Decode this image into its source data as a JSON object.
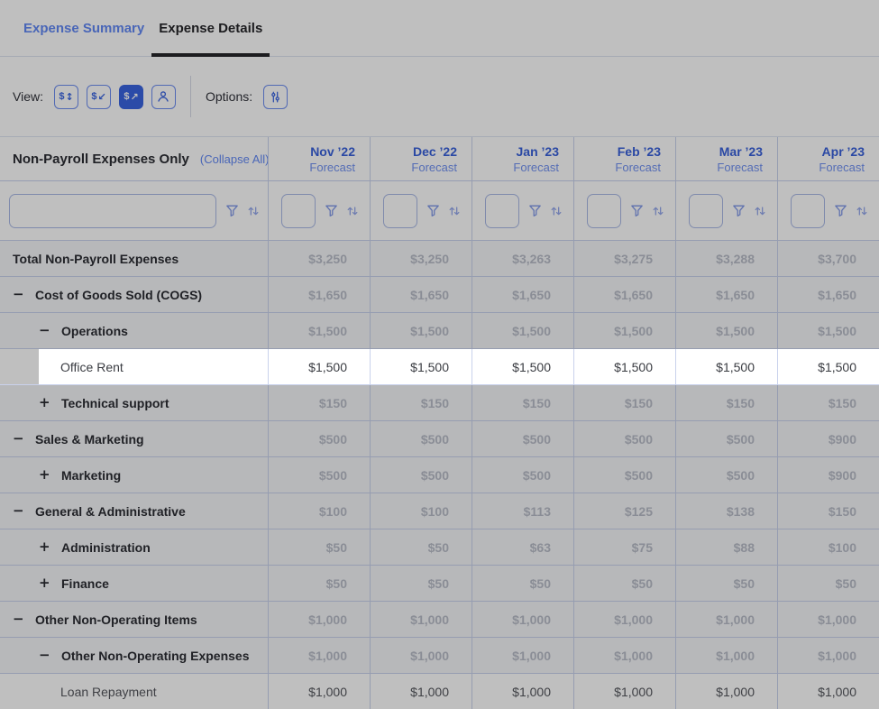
{
  "tabs": {
    "items": [
      {
        "label": "Expense Summary",
        "active": false
      },
      {
        "label": "Expense Details",
        "active": true
      }
    ]
  },
  "toolbar": {
    "view_label": "View:",
    "options_label": "Options:",
    "view_buttons": [
      {
        "icon": "dollar-updown-icon",
        "active": false
      },
      {
        "icon": "dollar-arrow-in-icon",
        "active": false
      },
      {
        "icon": "dollar-arrow-out-icon",
        "active": true
      },
      {
        "icon": "person-icon",
        "active": false
      }
    ],
    "options_buttons": [
      {
        "icon": "sliders-icon",
        "active": false
      }
    ]
  },
  "table": {
    "corner_title": "Non-Payroll Expenses Only",
    "collapse_all_label": "(Collapse All)",
    "filter_row": {
      "text_input_value": "",
      "month_input_value": "",
      "icons": [
        "filter-icon",
        "sort-icon"
      ]
    },
    "columns": [
      {
        "label": "Nov ’22",
        "sublabel": "Forecast"
      },
      {
        "label": "Dec ’22",
        "sublabel": "Forecast"
      },
      {
        "label": "Jan ’23",
        "sublabel": "Forecast"
      },
      {
        "label": "Feb ’23",
        "sublabel": "Forecast"
      },
      {
        "label": "Mar ’23",
        "sublabel": "Forecast"
      },
      {
        "label": "Apr ’23",
        "sublabel": "Forecast"
      }
    ],
    "rows": [
      {
        "label": "Total Non-Payroll Expenses",
        "type": "total",
        "level": 0,
        "icon": "none",
        "highlight": false,
        "values": [
          "$3,250",
          "$3,250",
          "$3,263",
          "$3,275",
          "$3,288",
          "$3,700"
        ]
      },
      {
        "label": "Cost of Goods Sold (COGS)",
        "type": "group",
        "level": 1,
        "icon": "minus",
        "highlight": false,
        "values": [
          "$1,650",
          "$1,650",
          "$1,650",
          "$1,650",
          "$1,650",
          "$1,650"
        ]
      },
      {
        "label": "Operations",
        "type": "group",
        "level": 2,
        "icon": "minus",
        "highlight": false,
        "values": [
          "$1,500",
          "$1,500",
          "$1,500",
          "$1,500",
          "$1,500",
          "$1,500"
        ]
      },
      {
        "label": "Office Rent",
        "type": "leaf",
        "level": 3,
        "icon": "none",
        "highlight": true,
        "values": [
          "$1,500",
          "$1,500",
          "$1,500",
          "$1,500",
          "$1,500",
          "$1,500"
        ]
      },
      {
        "label": "Technical support",
        "type": "group",
        "level": 2,
        "icon": "plus",
        "highlight": false,
        "values": [
          "$150",
          "$150",
          "$150",
          "$150",
          "$150",
          "$150"
        ]
      },
      {
        "label": "Sales & Marketing",
        "type": "group",
        "level": 1,
        "icon": "minus",
        "highlight": false,
        "values": [
          "$500",
          "$500",
          "$500",
          "$500",
          "$500",
          "$900"
        ]
      },
      {
        "label": "Marketing",
        "type": "group",
        "level": 2,
        "icon": "plus",
        "highlight": false,
        "values": [
          "$500",
          "$500",
          "$500",
          "$500",
          "$500",
          "$900"
        ]
      },
      {
        "label": "General & Administrative",
        "type": "group",
        "level": 1,
        "icon": "minus",
        "highlight": false,
        "values": [
          "$100",
          "$100",
          "$113",
          "$125",
          "$138",
          "$150"
        ]
      },
      {
        "label": "Administration",
        "type": "group",
        "level": 2,
        "icon": "plus",
        "highlight": false,
        "values": [
          "$50",
          "$50",
          "$63",
          "$75",
          "$88",
          "$100"
        ]
      },
      {
        "label": "Finance",
        "type": "group",
        "level": 2,
        "icon": "plus",
        "highlight": false,
        "values": [
          "$50",
          "$50",
          "$50",
          "$50",
          "$50",
          "$50"
        ]
      },
      {
        "label": "Other Non-Operating Items",
        "type": "group",
        "level": 1,
        "icon": "minus",
        "highlight": false,
        "values": [
          "$1,000",
          "$1,000",
          "$1,000",
          "$1,000",
          "$1,000",
          "$1,000"
        ]
      },
      {
        "label": "Other Non-Operating Expenses",
        "type": "group",
        "level": 2,
        "icon": "minus",
        "highlight": false,
        "values": [
          "$1,000",
          "$1,000",
          "$1,000",
          "$1,000",
          "$1,000",
          "$1,000"
        ]
      },
      {
        "label": "Loan Repayment",
        "type": "leaf",
        "level": 3,
        "icon": "none",
        "highlight": false,
        "values": [
          "$1,000",
          "$1,000",
          "$1,000",
          "$1,000",
          "$1,000",
          "$1,000"
        ]
      }
    ]
  },
  "colors": {
    "accent_blue": "#3a64e0",
    "link_blue": "#6288f5",
    "month_blue": "#3961db",
    "forecast_blue": "#7292f2",
    "value_gray": "#b9bdc8",
    "border_blue": "#c9d2ec",
    "dim_overlay": "rgba(0,0,0,0.25)",
    "highlight_bg": "#ffffff"
  }
}
